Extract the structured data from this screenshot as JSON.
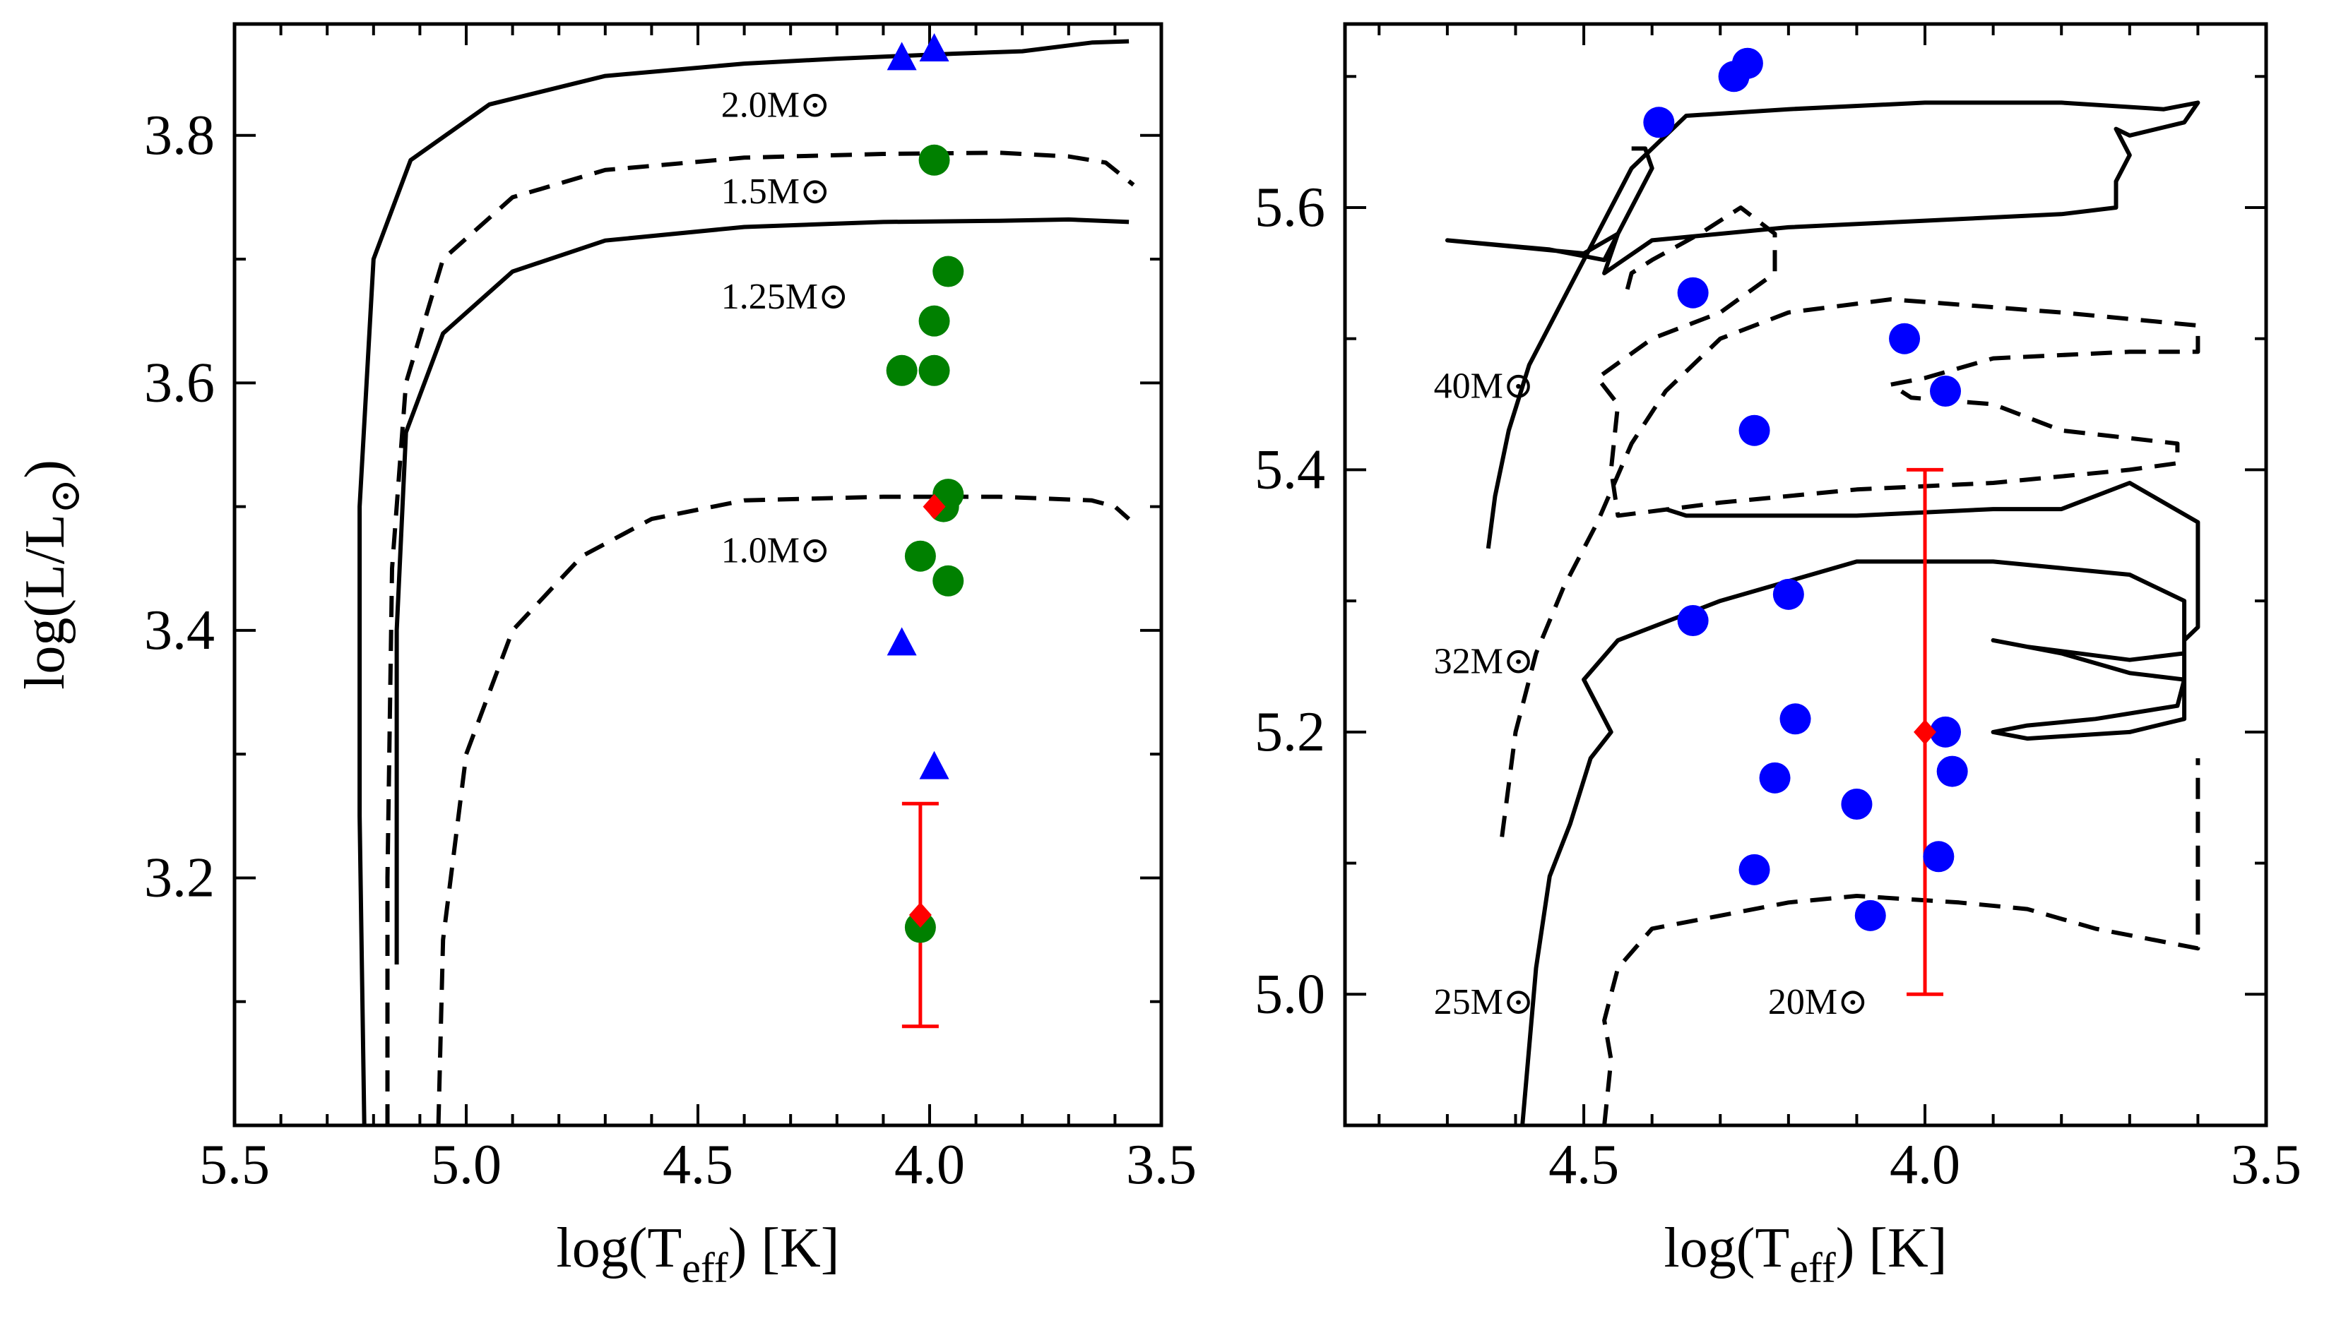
{
  "chart_data": [
    {
      "type": "scatter",
      "panel": "left",
      "xlabel": {
        "main": "log(T",
        "sub": "eff",
        "rest": ") [K]"
      },
      "ylabel": {
        "main": "log(L/L",
        "sub": "⊙",
        "rest": ")"
      },
      "xlim": [
        5.5,
        3.5
      ],
      "ylim": [
        3.0,
        3.89
      ],
      "xticks": [
        "5.5",
        "5.0",
        "4.5",
        "4.0",
        "3.5"
      ],
      "yticks": [
        "3.2",
        "3.4",
        "3.6",
        "3.8"
      ],
      "xtick_values": [
        5.5,
        5.0,
        4.5,
        4.0,
        3.5
      ],
      "ytick_values": [
        3.2,
        3.4,
        3.6,
        3.8
      ],
      "tracks": [
        {
          "label": "2.0M",
          "sun": "⊙",
          "style": "solid",
          "label_x": 4.45,
          "label_y": 3.815,
          "points": [
            [
              5.22,
              3.0
            ],
            [
              5.23,
              3.25
            ],
            [
              5.23,
              3.5
            ],
            [
              5.2,
              3.7
            ],
            [
              5.12,
              3.78
            ],
            [
              4.95,
              3.825
            ],
            [
              4.7,
              3.848
            ],
            [
              4.4,
              3.858
            ],
            [
              4.2,
              3.862
            ],
            [
              3.95,
              3.866
            ],
            [
              3.8,
              3.868
            ],
            [
              3.65,
              3.875
            ],
            [
              3.57,
              3.876
            ]
          ]
        },
        {
          "label": "1.5M",
          "sun": "⊙",
          "style": "dashed",
          "label_x": 4.45,
          "label_y": 3.745,
          "points": [
            [
              5.17,
              3.0
            ],
            [
              5.17,
              3.2
            ],
            [
              5.16,
              3.45
            ],
            [
              5.13,
              3.6
            ],
            [
              5.05,
              3.7
            ],
            [
              4.9,
              3.75
            ],
            [
              4.7,
              3.772
            ],
            [
              4.4,
              3.782
            ],
            [
              4.1,
              3.785
            ],
            [
              3.85,
              3.786
            ],
            [
              3.7,
              3.783
            ],
            [
              3.62,
              3.778
            ],
            [
              3.56,
              3.76
            ]
          ]
        },
        {
          "label": "1.25M",
          "sun": "⊙",
          "style": "solid",
          "label_x": 4.45,
          "label_y": 3.66,
          "points": [
            [
              5.15,
              3.13
            ],
            [
              5.15,
              3.4
            ],
            [
              5.13,
              3.56
            ],
            [
              5.05,
              3.64
            ],
            [
              4.9,
              3.69
            ],
            [
              4.7,
              3.715
            ],
            [
              4.4,
              3.726
            ],
            [
              4.1,
              3.73
            ],
            [
              3.85,
              3.731
            ],
            [
              3.7,
              3.732
            ],
            [
              3.57,
              3.73
            ]
          ]
        },
        {
          "label": "1.0M",
          "sun": "⊙",
          "style": "dashed",
          "label_x": 4.45,
          "label_y": 3.455,
          "points": [
            [
              5.06,
              3.0
            ],
            [
              5.05,
              3.15
            ],
            [
              5.0,
              3.3
            ],
            [
              4.9,
              3.4
            ],
            [
              4.75,
              3.46
            ],
            [
              4.6,
              3.49
            ],
            [
              4.4,
              3.505
            ],
            [
              4.1,
              3.508
            ],
            [
              3.85,
              3.508
            ],
            [
              3.65,
              3.505
            ],
            [
              3.6,
              3.5
            ],
            [
              3.57,
              3.49
            ]
          ]
        }
      ],
      "series": [
        {
          "name": "triangles",
          "marker": "triangle",
          "color": "#0000ff",
          "x": [
            4.06,
            3.99,
            4.06,
            3.99
          ],
          "y": [
            3.863,
            3.87,
            3.39,
            3.29
          ]
        },
        {
          "name": "circles",
          "marker": "circle",
          "color": "#008000",
          "x": [
            3.99,
            3.96,
            3.99,
            4.06,
            3.99,
            3.96,
            3.97,
            4.02,
            3.96,
            4.02
          ],
          "y": [
            3.78,
            3.69,
            3.65,
            3.61,
            3.61,
            3.51,
            3.5,
            3.46,
            3.44,
            3.16
          ]
        },
        {
          "name": "diamonds",
          "marker": "diamond",
          "color": "#ff0000",
          "x": [
            3.99,
            4.02
          ],
          "y": [
            3.5,
            3.17
          ]
        }
      ],
      "errorbars": [
        {
          "x": 4.02,
          "y_low": 3.08,
          "y_high": 3.26,
          "color": "#ff0000"
        }
      ]
    },
    {
      "type": "scatter",
      "panel": "right",
      "xlabel": {
        "main": "log(T",
        "sub": "eff",
        "rest": ") [K]"
      },
      "xlim": [
        4.85,
        3.5
      ],
      "ylim": [
        4.9,
        5.74
      ],
      "xticks": [
        "4.5",
        "4.0",
        "3.5"
      ],
      "yticks": [
        "5.0",
        "5.2",
        "5.4",
        "5.6"
      ],
      "xtick_values": [
        4.5,
        4.0,
        3.5
      ],
      "ytick_values": [
        5.0,
        5.2,
        5.4,
        5.6
      ],
      "tracks": [
        {
          "label": "40M",
          "sun": "⊙",
          "style": "solid",
          "label_x": 4.72,
          "label_y": 5.455,
          "points": [
            [
              4.64,
              5.34
            ],
            [
              4.63,
              5.38
            ],
            [
              4.61,
              5.43
            ],
            [
              4.58,
              5.48
            ],
            [
              4.54,
              5.52
            ],
            [
              4.48,
              5.58
            ],
            [
              4.43,
              5.63
            ],
            [
              4.35,
              5.67
            ],
            [
              4.2,
              5.675
            ],
            [
              4.0,
              5.68
            ],
            [
              3.8,
              5.68
            ],
            [
              3.65,
              5.675
            ],
            [
              3.6,
              5.68
            ],
            [
              3.62,
              5.665
            ],
            [
              3.7,
              5.655
            ],
            [
              3.72,
              5.66
            ],
            [
              3.7,
              5.64
            ],
            [
              3.72,
              5.62
            ],
            [
              3.72,
              5.6
            ],
            [
              3.8,
              5.595
            ],
            [
              4.0,
              5.59
            ],
            [
              4.2,
              5.585
            ],
            [
              4.4,
              5.575
            ],
            [
              4.47,
              5.55
            ],
            [
              4.45,
              5.58
            ],
            [
              4.5,
              5.565
            ],
            [
              4.6,
              5.57
            ],
            [
              4.7,
              5.575
            ],
            [
              4.55,
              5.568
            ],
            [
              4.47,
              5.56
            ],
            [
              4.43,
              5.6
            ],
            [
              4.4,
              5.63
            ],
            [
              4.41,
              5.645
            ],
            [
              4.43,
              5.645
            ]
          ]
        },
        {
          "label": "32M",
          "sun": "⊙",
          "style": "dashed",
          "label_x": 4.72,
          "label_y": 5.245,
          "points": [
            [
              4.62,
              5.12
            ],
            [
              4.6,
              5.2
            ],
            [
              4.57,
              5.26
            ],
            [
              4.53,
              5.31
            ],
            [
              4.48,
              5.36
            ],
            [
              4.43,
              5.42
            ],
            [
              4.38,
              5.46
            ],
            [
              4.3,
              5.5
            ],
            [
              4.2,
              5.52
            ],
            [
              4.05,
              5.53
            ],
            [
              3.8,
              5.52
            ],
            [
              3.6,
              5.51
            ],
            [
              3.6,
              5.49
            ],
            [
              3.7,
              5.49
            ],
            [
              3.9,
              5.485
            ],
            [
              4.0,
              5.47
            ],
            [
              4.05,
              5.465
            ],
            [
              4.02,
              5.455
            ],
            [
              3.9,
              5.45
            ],
            [
              3.8,
              5.43
            ],
            [
              3.63,
              5.42
            ],
            [
              3.63,
              5.405
            ],
            [
              3.7,
              5.4
            ],
            [
              3.9,
              5.39
            ],
            [
              4.1,
              5.385
            ],
            [
              4.3,
              5.375
            ],
            [
              4.45,
              5.365
            ],
            [
              4.46,
              5.4
            ],
            [
              4.45,
              5.45
            ],
            [
              4.48,
              5.47
            ],
            [
              4.4,
              5.5
            ],
            [
              4.3,
              5.52
            ],
            [
              4.22,
              5.55
            ],
            [
              4.22,
              5.58
            ],
            [
              4.27,
              5.6
            ],
            [
              4.33,
              5.58
            ],
            [
              4.4,
              5.56
            ],
            [
              4.43,
              5.55
            ],
            [
              4.44,
              5.53
            ]
          ]
        },
        {
          "label": "25M",
          "sun": "⊙",
          "style": "solid",
          "label_x": 4.72,
          "label_y": 4.985,
          "points": [
            [
              4.59,
              4.9
            ],
            [
              4.57,
              5.02
            ],
            [
              4.55,
              5.09
            ],
            [
              4.52,
              5.13
            ],
            [
              4.49,
              5.18
            ],
            [
              4.46,
              5.2
            ],
            [
              4.48,
              5.22
            ],
            [
              4.5,
              5.24
            ],
            [
              4.45,
              5.27
            ],
            [
              4.3,
              5.3
            ],
            [
              4.1,
              5.33
            ],
            [
              3.9,
              5.33
            ],
            [
              3.7,
              5.32
            ],
            [
              3.62,
              5.3
            ],
            [
              3.62,
              5.26
            ],
            [
              3.7,
              5.255
            ],
            [
              3.85,
              5.265
            ],
            [
              3.9,
              5.27
            ],
            [
              3.8,
              5.26
            ],
            [
              3.7,
              5.245
            ],
            [
              3.62,
              5.24
            ],
            [
              3.63,
              5.22
            ],
            [
              3.75,
              5.21
            ],
            [
              3.85,
              5.205
            ],
            [
              3.9,
              5.2
            ],
            [
              3.85,
              5.195
            ],
            [
              3.7,
              5.2
            ],
            [
              3.62,
              5.21
            ],
            [
              3.62,
              5.27
            ],
            [
              3.6,
              5.28
            ],
            [
              3.6,
              5.36
            ],
            [
              3.7,
              5.39
            ],
            [
              3.8,
              5.37
            ],
            [
              3.9,
              5.37
            ],
            [
              4.1,
              5.365
            ],
            [
              4.35,
              5.365
            ],
            [
              4.38,
              5.37
            ]
          ]
        },
        {
          "label": "20M",
          "sun": "⊙",
          "style": "dashed",
          "label_x": 4.23,
          "label_y": 4.985,
          "points": [
            [
              4.47,
              4.9
            ],
            [
              4.46,
              4.95
            ],
            [
              4.47,
              4.98
            ],
            [
              4.46,
              5.0
            ],
            [
              4.45,
              5.02
            ],
            [
              4.4,
              5.05
            ],
            [
              4.3,
              5.06
            ],
            [
              4.2,
              5.07
            ],
            [
              4.1,
              5.075
            ],
            [
              3.95,
              5.07
            ],
            [
              3.85,
              5.065
            ],
            [
              3.75,
              5.05
            ],
            [
              3.65,
              5.04
            ],
            [
              3.6,
              5.035
            ],
            [
              3.6,
              5.06
            ],
            [
              3.6,
              5.1
            ],
            [
              3.6,
              5.14
            ],
            [
              3.6,
              5.18
            ]
          ]
        }
      ],
      "series": [
        {
          "name": "circles",
          "marker": "circle",
          "color": "#0000ff",
          "x": [
            4.26,
            4.28,
            4.39,
            4.34,
            4.03,
            3.97,
            4.25,
            4.34,
            4.2,
            4.19,
            3.97,
            4.22,
            3.96,
            4.1,
            3.98,
            4.25,
            4.08
          ],
          "y": [
            5.71,
            5.7,
            5.665,
            5.535,
            5.5,
            5.46,
            5.43,
            5.285,
            5.305,
            5.21,
            5.2,
            5.165,
            5.17,
            5.145,
            5.105,
            5.095,
            5.06
          ]
        },
        {
          "name": "diamonds",
          "marker": "diamond",
          "color": "#ff0000",
          "x": [
            4.0
          ],
          "y": [
            5.2
          ]
        }
      ],
      "errorbars": [
        {
          "x": 4.0,
          "y_low": 5.0,
          "y_high": 5.4,
          "color": "#ff0000"
        }
      ]
    }
  ]
}
